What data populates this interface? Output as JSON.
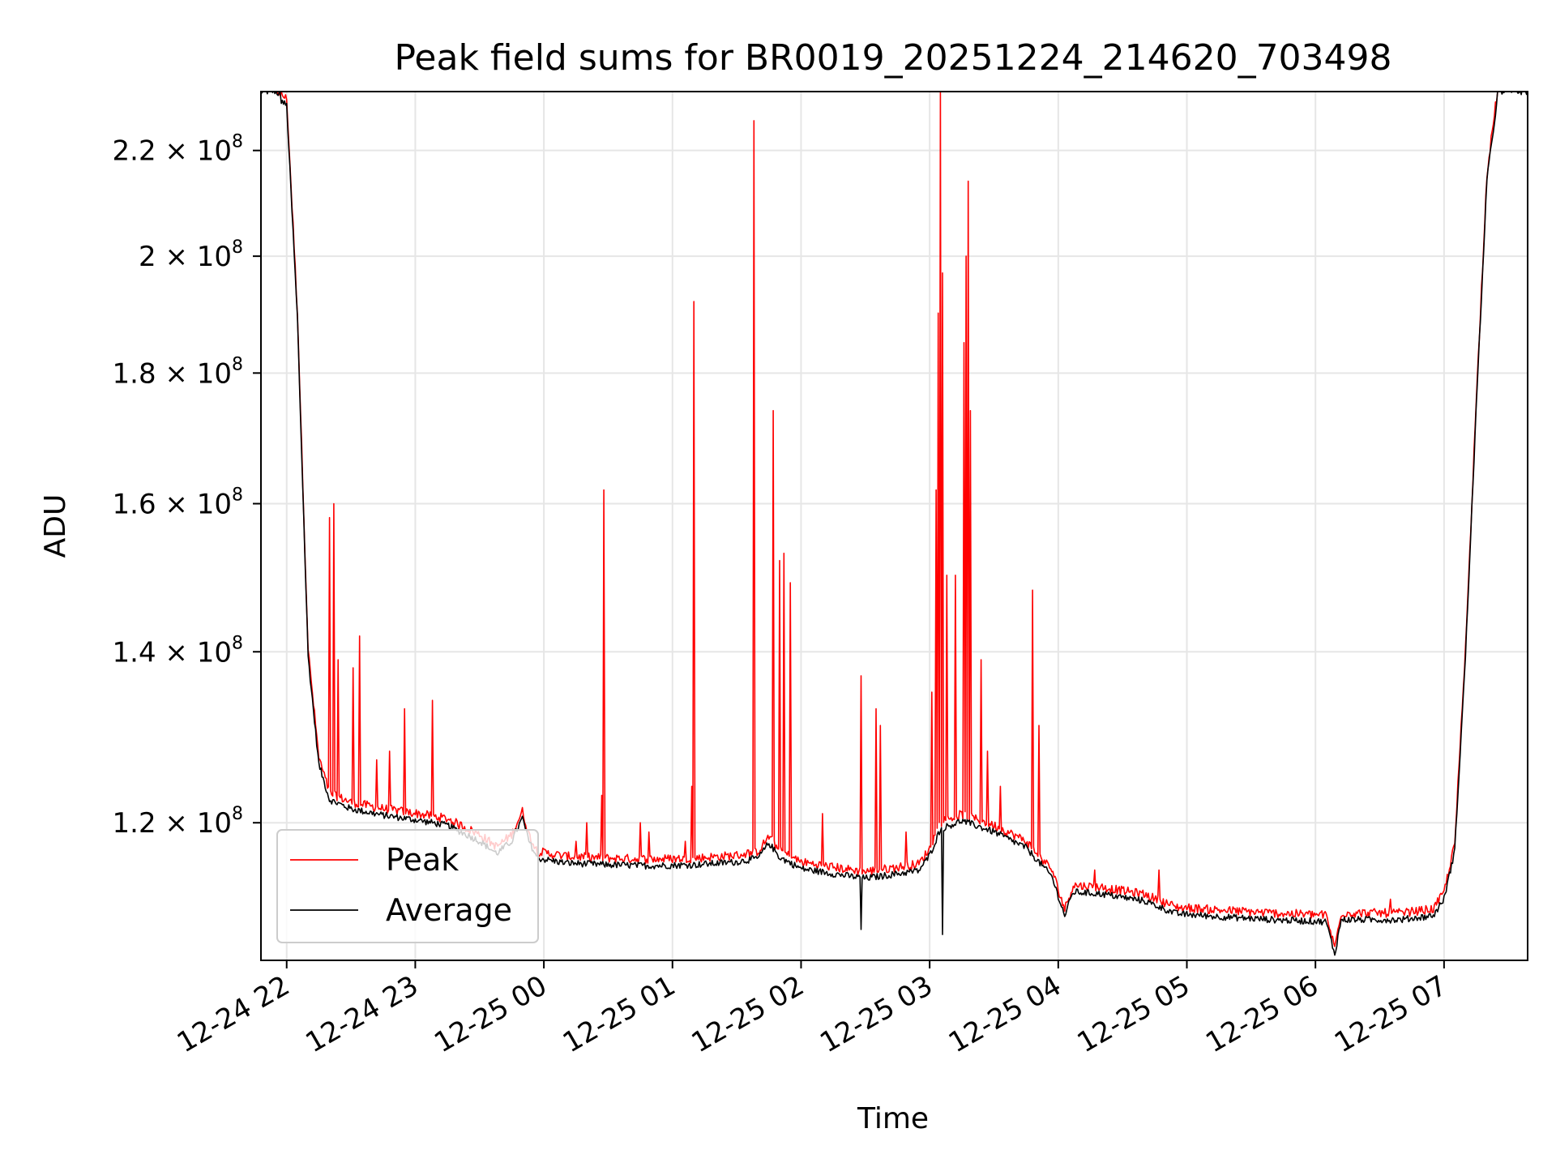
{
  "chart_data": {
    "type": "line",
    "title": "Peak field sums for BR0019_20251224_214620_703498",
    "xlabel": "Time",
    "ylabel": "ADU",
    "yscale": "log",
    "xlim": [
      "2025-12-24 21:48",
      "2025-12-25 07:39"
    ],
    "ylim": [
      106000000,
      232000000
    ],
    "grid": true,
    "legend_position": "lower-left",
    "x_ticks": [
      {
        "at": "2025-12-24 22:00",
        "label": "12-24 22"
      },
      {
        "at": "2025-12-24 23:00",
        "label": "12-24 23"
      },
      {
        "at": "2025-12-25 00:00",
        "label": "12-25 00"
      },
      {
        "at": "2025-12-25 01:00",
        "label": "12-25 01"
      },
      {
        "at": "2025-12-25 02:00",
        "label": "12-25 02"
      },
      {
        "at": "2025-12-25 03:00",
        "label": "12-25 03"
      },
      {
        "at": "2025-12-25 04:00",
        "label": "12-25 04"
      },
      {
        "at": "2025-12-25 05:00",
        "label": "12-25 05"
      },
      {
        "at": "2025-12-25 06:00",
        "label": "12-25 06"
      },
      {
        "at": "2025-12-25 07:00",
        "label": "12-25 07"
      }
    ],
    "y_ticks": [
      {
        "value": 120000000,
        "mantissa": "1.2",
        "base": "× 10",
        "exp": "8"
      },
      {
        "value": 140000000,
        "mantissa": "1.4",
        "base": "× 10",
        "exp": "8"
      },
      {
        "value": 160000000,
        "mantissa": "1.6",
        "base": "× 10",
        "exp": "8"
      },
      {
        "value": 180000000,
        "mantissa": "1.8",
        "base": "× 10",
        "exp": "8"
      },
      {
        "value": 200000000,
        "mantissa": "2",
        "base": "× 10",
        "exp": "8"
      },
      {
        "value": 220000000,
        "mantissa": "2.2",
        "base": "× 10",
        "exp": "8"
      }
    ],
    "series": [
      {
        "name": "Peak",
        "color": "#ff0000",
        "baseline_points": [
          [
            "2025-12-24 21:48",
            232000000
          ],
          [
            "2025-12-24 21:55",
            232000000
          ],
          [
            "2025-12-24 22:00",
            230000000
          ],
          [
            "2025-12-24 22:05",
            190000000
          ],
          [
            "2025-12-24 22:10",
            140000000
          ],
          [
            "2025-12-24 22:15",
            127000000
          ],
          [
            "2025-12-24 22:20",
            123000000
          ],
          [
            "2025-12-24 22:30",
            122000000
          ],
          [
            "2025-12-24 22:45",
            121300000
          ],
          [
            "2025-12-24 23:00",
            120800000
          ],
          [
            "2025-12-24 23:15",
            120200000
          ],
          [
            "2025-12-24 23:30",
            118500000
          ],
          [
            "2025-12-24 23:38",
            117200000
          ],
          [
            "2025-12-24 23:45",
            118500000
          ],
          [
            "2025-12-24 23:50",
            121000000
          ],
          [
            "2025-12-24 23:53",
            118500000
          ],
          [
            "2025-12-24 23:57",
            116700000
          ],
          [
            "2025-12-25 00:10",
            116200000
          ],
          [
            "2025-12-25 00:30",
            116000000
          ],
          [
            "2025-12-25 00:50",
            115900000
          ],
          [
            "2025-12-25 01:10",
            116000000
          ],
          [
            "2025-12-25 01:30",
            116300000
          ],
          [
            "2025-12-25 01:40",
            116700000
          ],
          [
            "2025-12-25 01:45",
            118300000
          ],
          [
            "2025-12-25 01:50",
            116800000
          ],
          [
            "2025-12-25 02:00",
            115600000
          ],
          [
            "2025-12-25 02:20",
            114900000
          ],
          [
            "2025-12-25 02:30",
            114600000
          ],
          [
            "2025-12-25 02:40",
            114900000
          ],
          [
            "2025-12-25 02:55",
            115400000
          ],
          [
            "2025-12-25 03:00",
            117000000
          ],
          [
            "2025-12-25 03:05",
            119800000
          ],
          [
            "2025-12-25 03:15",
            120700000
          ],
          [
            "2025-12-25 03:30",
            119500000
          ],
          [
            "2025-12-25 03:45",
            117800000
          ],
          [
            "2025-12-25 03:57",
            114800000
          ],
          [
            "2025-12-25 04:03",
            110800000
          ],
          [
            "2025-12-25 04:07",
            113200000
          ],
          [
            "2025-12-25 04:20",
            113000000
          ],
          [
            "2025-12-25 04:40",
            112300000
          ],
          [
            "2025-12-25 04:55",
            111000000
          ],
          [
            "2025-12-25 05:15",
            110700000
          ],
          [
            "2025-12-25 05:40",
            110400000
          ],
          [
            "2025-12-25 06:05",
            110200000
          ],
          [
            "2025-12-25 06:09",
            107000000
          ],
          [
            "2025-12-25 06:12",
            110400000
          ],
          [
            "2025-12-25 06:40",
            110400000
          ],
          [
            "2025-12-25 06:55",
            110800000
          ],
          [
            "2025-12-25 07:00",
            112500000
          ],
          [
            "2025-12-25 07:05",
            117500000
          ],
          [
            "2025-12-25 07:10",
            140000000
          ],
          [
            "2025-12-25 07:15",
            175000000
          ],
          [
            "2025-12-25 07:20",
            215000000
          ],
          [
            "2025-12-25 07:25",
            232000000
          ],
          [
            "2025-12-25 07:39",
            232000000
          ]
        ],
        "spikes": [
          [
            "2025-12-24 22:20",
            158000000
          ],
          [
            "2025-12-24 22:22",
            160000000
          ],
          [
            "2025-12-24 22:24",
            139000000
          ],
          [
            "2025-12-24 22:31",
            138000000
          ],
          [
            "2025-12-24 22:34",
            142000000
          ],
          [
            "2025-12-24 22:42",
            127000000
          ],
          [
            "2025-12-24 22:48",
            128000000
          ],
          [
            "2025-12-24 22:55",
            133000000
          ],
          [
            "2025-12-24 23:08",
            134000000
          ],
          [
            "2025-12-25 00:15",
            118000000
          ],
          [
            "2025-12-25 00:20",
            120000000
          ],
          [
            "2025-12-25 00:27",
            123000000
          ],
          [
            "2025-12-25 00:28",
            162000000
          ],
          [
            "2025-12-25 00:45",
            120000000
          ],
          [
            "2025-12-25 00:49",
            119000000
          ],
          [
            "2025-12-25 01:06",
            118000000
          ],
          [
            "2025-12-25 01:09",
            124000000
          ],
          [
            "2025-12-25 01:10",
            192000000
          ],
          [
            "2025-12-25 01:38",
            226000000
          ],
          [
            "2025-12-25 01:47",
            174000000
          ],
          [
            "2025-12-25 01:50",
            152000000
          ],
          [
            "2025-12-25 01:52",
            153000000
          ],
          [
            "2025-12-25 01:55",
            149000000
          ],
          [
            "2025-12-25 02:10",
            121000000
          ],
          [
            "2025-12-25 02:28",
            137000000
          ],
          [
            "2025-12-25 02:35",
            133000000
          ],
          [
            "2025-12-25 02:37",
            131000000
          ],
          [
            "2025-12-25 02:49",
            119000000
          ],
          [
            "2025-12-25 03:01",
            135000000
          ],
          [
            "2025-12-25 03:03",
            162000000
          ],
          [
            "2025-12-25 03:04",
            190000000
          ],
          [
            "2025-12-25 03:05",
            232000000
          ],
          [
            "2025-12-25 03:06",
            197000000
          ],
          [
            "2025-12-25 03:08",
            150000000
          ],
          [
            "2025-12-25 03:12",
            150000000
          ],
          [
            "2025-12-25 03:16",
            185000000
          ],
          [
            "2025-12-25 03:17",
            200000000
          ],
          [
            "2025-12-25 03:18",
            214000000
          ],
          [
            "2025-12-25 03:19",
            174000000
          ],
          [
            "2025-12-25 03:24",
            139000000
          ],
          [
            "2025-12-25 03:27",
            128000000
          ],
          [
            "2025-12-25 03:33",
            124000000
          ],
          [
            "2025-12-25 03:48",
            148000000
          ],
          [
            "2025-12-25 03:51",
            131000000
          ],
          [
            "2025-12-25 04:17",
            115000000
          ],
          [
            "2025-12-25 04:47",
            115000000
          ],
          [
            "2025-12-25 06:35",
            112000000
          ]
        ]
      },
      {
        "name": "Average",
        "color": "#000000",
        "dips": [
          [
            "2025-12-25 02:28",
            109000000
          ],
          [
            "2025-12-25 03:06",
            108500000
          ],
          [
            "2025-12-25 06:09",
            106500000
          ]
        ]
      }
    ]
  }
}
